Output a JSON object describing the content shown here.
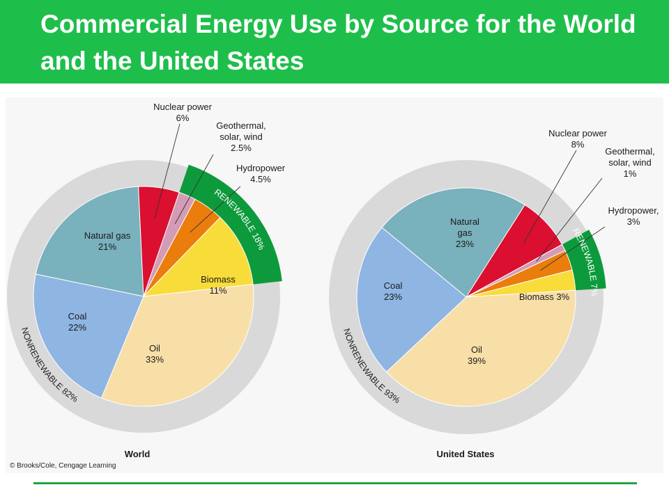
{
  "slide": {
    "title": "Commercial Energy Use by Source for the World and the United States",
    "credit": "© Brooks/Cole, Cengage Learning"
  },
  "colors": {
    "banner": "#1ebe4b",
    "ring": "#d9d9d9",
    "renewable": "#0d9a3c",
    "Natural gas": "#79b1bd",
    "Nuclear power": "#db0f2f",
    "Geothermal, solar, wind": "#d49bb5",
    "Hydropower": "#ea7d0c",
    "Biomass": "#f8dc3a",
    "Oil": "#f8dfa8",
    "Coal": "#8fb5e3"
  },
  "chart_data": [
    {
      "type": "pie",
      "title": "World",
      "groups": [
        {
          "label": "NONRENEWABLE 82%",
          "value": 82
        },
        {
          "label": "RENEWABLE 18%",
          "value": 18
        }
      ],
      "slices": [
        {
          "name": "Natural gas",
          "label": "Natural gas",
          "value": 21,
          "value_label": "21%"
        },
        {
          "name": "Nuclear power",
          "label": "Nuclear power",
          "value": 6,
          "value_label": "6%"
        },
        {
          "name": "Geothermal, solar, wind",
          "label": "Geothermal, solar, wind",
          "value": 2.5,
          "value_label": "2.5%"
        },
        {
          "name": "Hydropower",
          "label": "Hydropower",
          "value": 4.5,
          "value_label": "4.5%"
        },
        {
          "name": "Biomass",
          "label": "Biomass",
          "value": 11,
          "value_label": "11%"
        },
        {
          "name": "Oil",
          "label": "Oil",
          "value": 33,
          "value_label": "33%"
        },
        {
          "name": "Coal",
          "label": "Coal",
          "value": 22,
          "value_label": "22%"
        }
      ]
    },
    {
      "type": "pie",
      "title": "United States",
      "groups": [
        {
          "label": "NONRENEWABLE 93%",
          "value": 93
        },
        {
          "label": "RENEWABLE 7%",
          "value": 7
        }
      ],
      "slices": [
        {
          "name": "Natural gas",
          "label": "Natural gas",
          "value": 23,
          "value_label": "23%"
        },
        {
          "name": "Nuclear power",
          "label": "Nuclear power",
          "value": 8,
          "value_label": "8%"
        },
        {
          "name": "Geothermal, solar, wind",
          "label": "Geothermal, solar, wind",
          "value": 1,
          "value_label": "1%"
        },
        {
          "name": "Hydropower",
          "label": "Hydropower,",
          "value": 3,
          "value_label": "3%"
        },
        {
          "name": "Biomass",
          "label": "Biomass",
          "value": 3,
          "value_label": "3%"
        },
        {
          "name": "Oil",
          "label": "Oil",
          "value": 39,
          "value_label": "39%"
        },
        {
          "name": "Coal",
          "label": "Coal",
          "value": 23,
          "value_label": "23%"
        }
      ]
    }
  ]
}
